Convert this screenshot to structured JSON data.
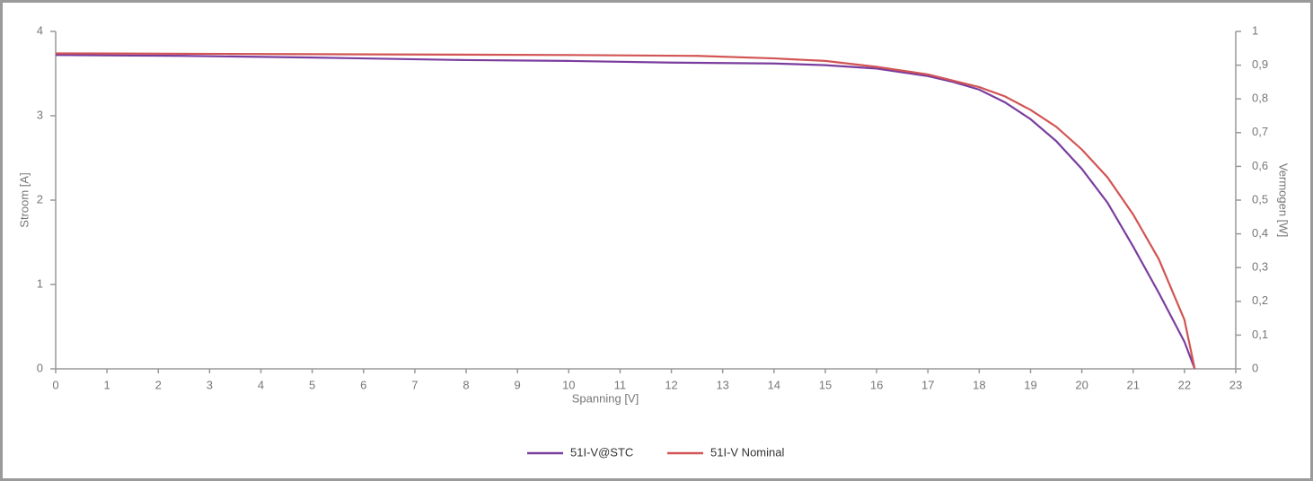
{
  "chart_data": {
    "type": "line",
    "x_label": "Spanning [V]",
    "y_label": "Stroom [A]",
    "y2_label": "Vermogen [W]",
    "xlim": [
      0,
      23
    ],
    "xticks": [
      0,
      1,
      2,
      3,
      4,
      5,
      6,
      7,
      8,
      9,
      10,
      11,
      12,
      13,
      14,
      15,
      16,
      17,
      18,
      19,
      20,
      21,
      22,
      23
    ],
    "ylim": [
      0,
      4
    ],
    "yticks": [
      0,
      1,
      2,
      3,
      4
    ],
    "y2lim": [
      0,
      1
    ],
    "y2ticks": [
      0,
      {
        "value": 0.1,
        "label": "0,1"
      },
      {
        "value": 0.2,
        "label": "0,2"
      },
      {
        "value": 0.3,
        "label": "0,3"
      },
      {
        "value": 0.4,
        "label": "0,4"
      },
      {
        "value": 0.5,
        "label": "0,5"
      },
      {
        "value": 0.6,
        "label": "0,6"
      },
      {
        "value": 0.7,
        "label": "0,7"
      },
      {
        "value": 0.8,
        "label": "0,8"
      },
      {
        "value": 0.9,
        "label": "0,9"
      },
      1
    ],
    "legend": "bottom",
    "series": [
      {
        "name": "51I-V@STC",
        "color": "#7a3d9e",
        "x": [
          0,
          2.5,
          5,
          8,
          10,
          12,
          14,
          15,
          16,
          17,
          17.5,
          18,
          18.5,
          19,
          19.5,
          20,
          20.5,
          21,
          21.5,
          22,
          22.2
        ],
        "values": [
          3.72,
          3.71,
          3.69,
          3.66,
          3.65,
          3.63,
          3.62,
          3.6,
          3.56,
          3.47,
          3.4,
          3.31,
          3.16,
          2.96,
          2.7,
          2.37,
          1.97,
          1.45,
          0.9,
          0.32,
          0
        ]
      },
      {
        "name": "51I-V Nominal",
        "color": "#d25454",
        "x": [
          0,
          5,
          10,
          12.5,
          14,
          15,
          16,
          17,
          18,
          18.5,
          19,
          19.5,
          20,
          20.5,
          21,
          21.5,
          22,
          22.2
        ],
        "values": [
          3.74,
          3.73,
          3.72,
          3.71,
          3.68,
          3.65,
          3.58,
          3.49,
          3.34,
          3.23,
          3.07,
          2.87,
          2.6,
          2.27,
          1.83,
          1.3,
          0.58,
          0
        ]
      }
    ]
  }
}
